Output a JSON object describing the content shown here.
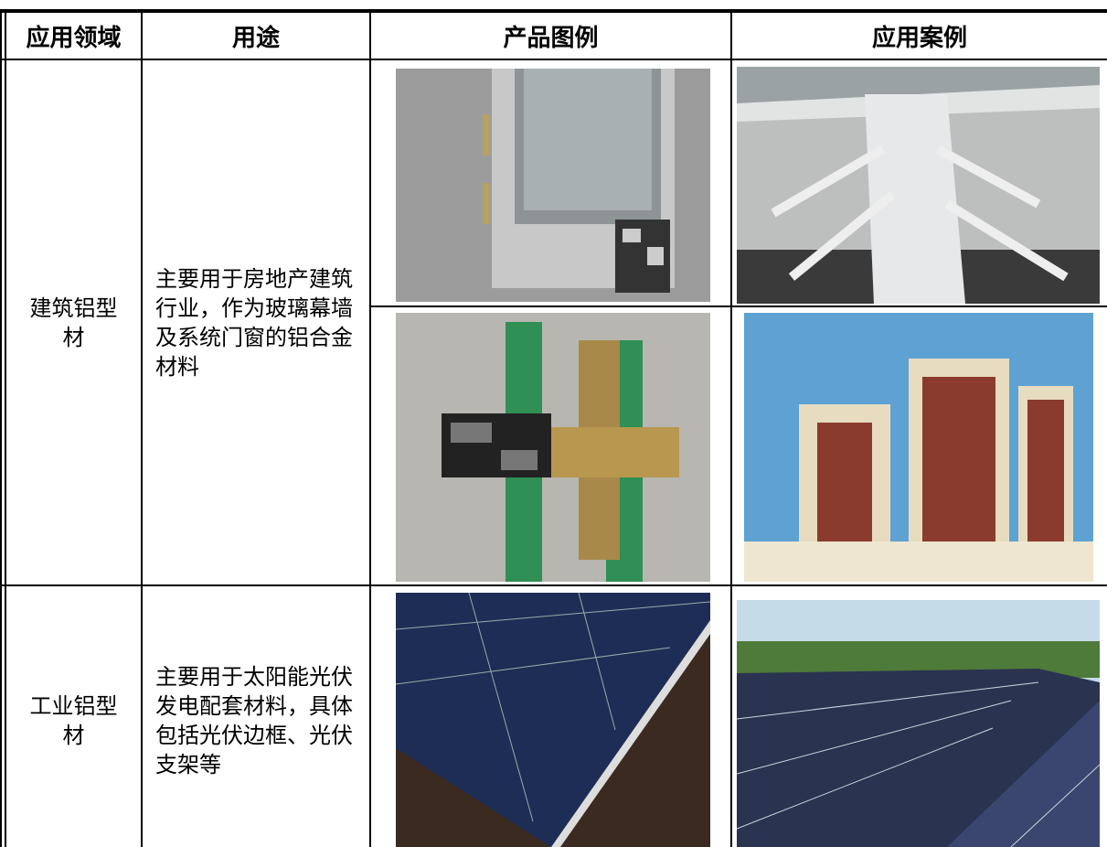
{
  "table": {
    "header": [
      "应用领域",
      "用途",
      "产品图例",
      "应用案例"
    ],
    "rows": [
      [
        "建筑铝型材",
        "主要用于房地产建筑行业，作为玻璃幕墙及系统门窗的铝合金材料"
      ],
      [
        "工业铝型材",
        "主要用于太阳能光伏发电配套材料，具体包括光伏边框、光伏支架等"
      ]
    ]
  }
}
